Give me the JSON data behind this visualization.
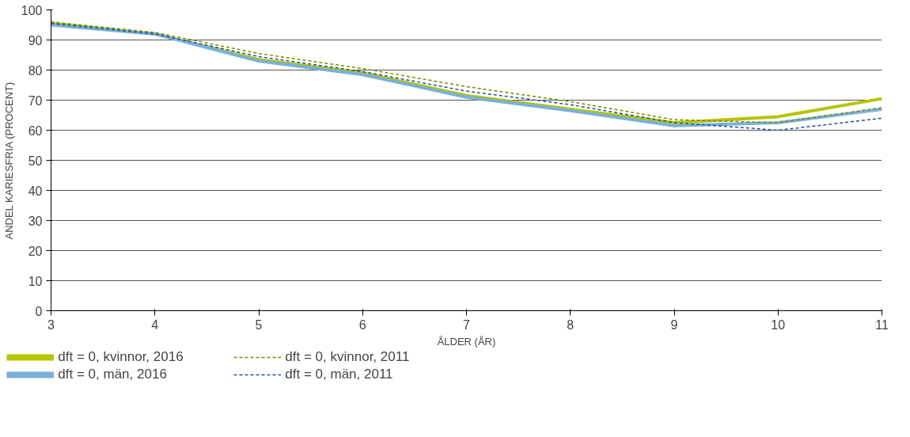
{
  "chart_data": {
    "type": "line",
    "xlabel": "ÅLDER (ÅR)",
    "ylabel": "ANDEL KARIESFRIA (PROCENT)",
    "x": [
      3,
      4,
      5,
      6,
      7,
      8,
      9,
      10,
      11
    ],
    "series": [
      {
        "name": "dft = 0, kvinnor, 2016",
        "color": "#b5c400",
        "line_style": "solid",
        "values": [
          95.5,
          92,
          83.5,
          79,
          71.5,
          67,
          62.5,
          64.5,
          70.5
        ]
      },
      {
        "name": "dft = 0, män, 2016",
        "color": "#7ab0dc",
        "line_style": "solid",
        "values": [
          95,
          92,
          83,
          78.5,
          71,
          66.5,
          61.5,
          62.5,
          67
        ]
      },
      {
        "name": "dft = 0, kvinnor, 2011",
        "color": "#7a8a00",
        "line_style": "dashed",
        "values": [
          96,
          92.5,
          85.5,
          80.5,
          74.5,
          69.5,
          63.5,
          62.5,
          67.5
        ]
      },
      {
        "name": "dft = 0, män, 2011",
        "color": "#1f4fa0",
        "line_style": "dashed",
        "values": [
          95.5,
          92,
          84.5,
          79.5,
          73,
          68.5,
          62.5,
          60,
          64
        ]
      }
    ],
    "xlim": [
      3,
      11
    ],
    "xticks": [
      3,
      4,
      5,
      6,
      7,
      8,
      9,
      10,
      11
    ],
    "ylim": [
      0,
      100
    ],
    "yticks": [
      0,
      10,
      20,
      30,
      40,
      50,
      60,
      70,
      80,
      90,
      100
    ],
    "grid": "y",
    "legend": "bottom",
    "marker": "none"
  }
}
